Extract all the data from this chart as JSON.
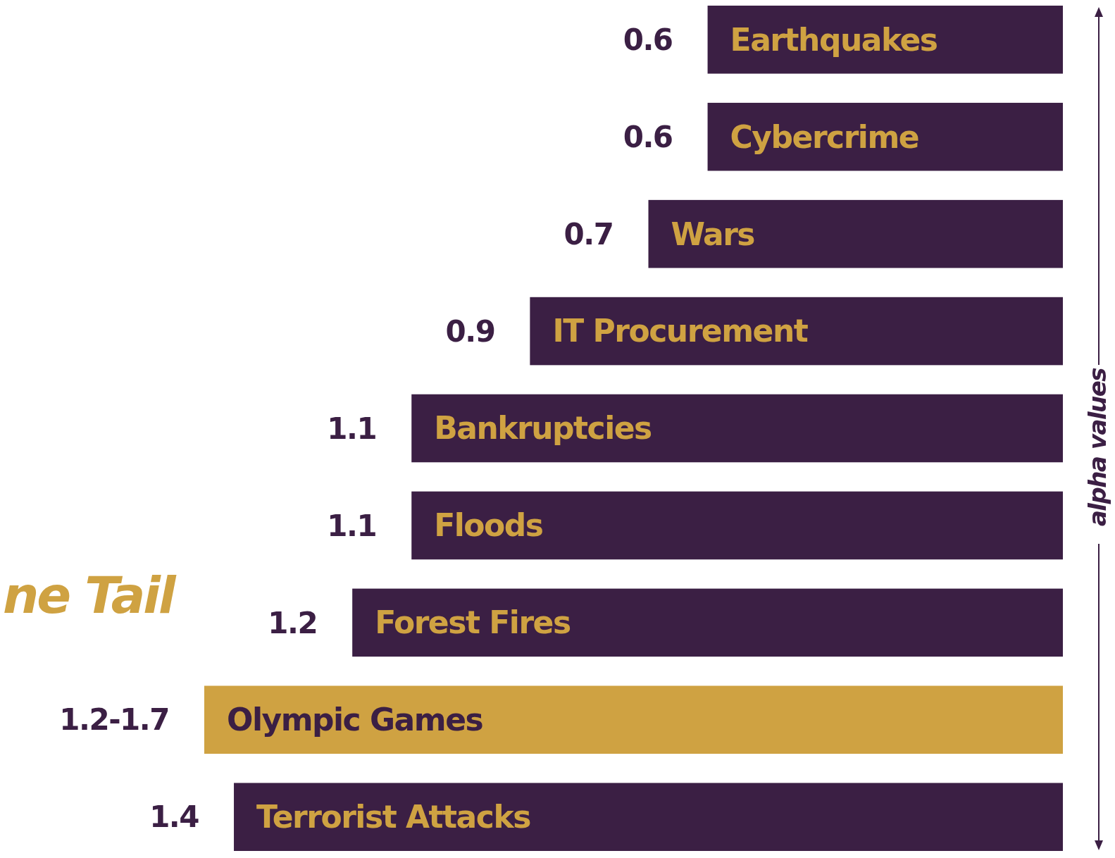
{
  "chart_data": {
    "type": "bar",
    "orientation": "horizontal",
    "title": "ne Tail",
    "ylabel": "alpha values",
    "categories": [
      "Earthquakes",
      "Cybercrime",
      "Wars",
      "IT Procurement",
      "Bankruptcies",
      "Floods",
      "Forest Fires",
      "Olympic Games",
      "Terrorist Attacks"
    ],
    "values": [
      0.6,
      0.6,
      0.7,
      0.9,
      1.1,
      1.1,
      1.2,
      1.45,
      1.4
    ],
    "value_labels": [
      "0.6",
      "0.6",
      "0.7",
      "0.9",
      "1.1",
      "1.1",
      "1.2",
      "1.2-1.7",
      "1.4"
    ],
    "colors": [
      "#3b1f44",
      "#3b1f44",
      "#3b1f44",
      "#3b1f44",
      "#3b1f44",
      "#3b1f44",
      "#3b1f44",
      "#cfa242",
      "#3b1f44"
    ]
  }
}
